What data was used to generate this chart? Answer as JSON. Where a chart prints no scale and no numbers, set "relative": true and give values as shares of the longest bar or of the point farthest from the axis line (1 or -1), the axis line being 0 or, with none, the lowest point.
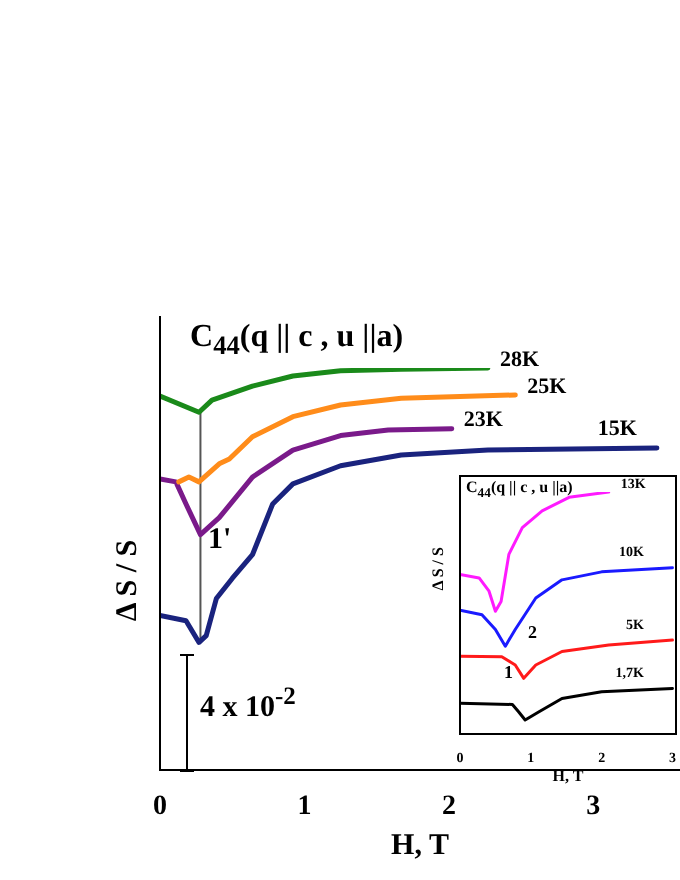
{
  "chart_data": [
    {
      "type": "line",
      "title": "C$_{44}$(q || c , u ||a)",
      "xlabel": "H, T",
      "ylabel": "Δ S / S",
      "relative": true,
      "xlim": [
        0,
        3.6
      ],
      "xticks": [
        0,
        1,
        2,
        3
      ],
      "legend": false,
      "grid": false,
      "marker": "none",
      "series": [
        {
          "name": "28K",
          "color": "#1a8a1a",
          "x": [
            0,
            0.27,
            0.36,
            0.64,
            0.92,
            1.25,
            1.67,
            2.27
          ],
          "values": [
            0.93,
            0.89,
            0.92,
            0.955,
            0.98,
            0.993,
            0.997,
            1.0
          ]
        },
        {
          "name": "25K",
          "color": "#ff8c1a",
          "x": [
            0.13,
            0.2,
            0.27,
            0.41,
            0.48,
            0.64,
            0.92,
            1.25,
            1.67,
            2.46
          ],
          "values": [
            0.717,
            0.729,
            0.717,
            0.762,
            0.774,
            0.829,
            0.879,
            0.908,
            0.925,
            0.933
          ]
        },
        {
          "name": "23K",
          "color": "#7a1a8a",
          "x": [
            0,
            0.11,
            0.18,
            0.28,
            0.41,
            0.64,
            0.92,
            1.25,
            1.58,
            2.02
          ],
          "values": [
            0.724,
            0.717,
            0.662,
            0.586,
            0.628,
            0.729,
            0.796,
            0.832,
            0.846,
            0.849
          ]
        },
        {
          "name": "15K",
          "color": "#1a237e",
          "x": [
            0,
            0.18,
            0.27,
            0.32,
            0.39,
            0.5,
            0.64,
            0.78,
            0.92,
            1.25,
            1.67,
            2.27,
            3.44
          ],
          "values": [
            0.385,
            0.372,
            0.318,
            0.335,
            0.427,
            0.477,
            0.536,
            0.662,
            0.712,
            0.757,
            0.784,
            0.796,
            0.801
          ]
        },
        {
          "color": "#555555",
          "x": [
            0.28,
            0.28
          ],
          "values": [
            0.89,
            0.318
          ]
        }
      ],
      "annotations": [
        "1'",
        "4 x 10$^{-2}$"
      ]
    },
    {
      "type": "line",
      "title": "C$_{44}$(q || c , u ||a)",
      "xlabel": "H, T",
      "ylabel": "Δ S / S",
      "relative": true,
      "xlim": [
        0,
        3.05
      ],
      "xticks": [
        0,
        1,
        2,
        3
      ],
      "legend": false,
      "grid": false,
      "marker": "none",
      "series": [
        {
          "name": "13K",
          "color": "#ff1aff",
          "x": [
            0,
            0.27,
            0.41,
            0.5,
            0.58,
            0.69,
            0.88,
            1.16,
            1.54,
            2.1
          ],
          "values": [
            0.659,
            0.645,
            0.59,
            0.507,
            0.548,
            0.742,
            0.853,
            0.922,
            0.978,
            1.0
          ]
        },
        {
          "name": "10K",
          "color": "#1a1aff",
          "x": [
            0,
            0.31,
            0.5,
            0.64,
            0.78,
            1.07,
            1.44,
            2.0,
            3.0
          ],
          "values": [
            0.512,
            0.493,
            0.432,
            0.363,
            0.432,
            0.562,
            0.637,
            0.67,
            0.687
          ]
        },
        {
          "name": "5K",
          "color": "#ff1a1a",
          "x": [
            0,
            0.59,
            0.78,
            0.9,
            1.07,
            1.44,
            2.1,
            3.0
          ],
          "values": [
            0.321,
            0.319,
            0.285,
            0.23,
            0.285,
            0.341,
            0.368,
            0.388
          ]
        },
        {
          "name": "1,7K",
          "color": "#000000",
          "x": [
            0,
            0.74,
            0.83,
            0.92,
            1.11,
            1.44,
            2.0,
            3.0
          ],
          "values": [
            0.127,
            0.122,
            0.091,
            0.058,
            0.091,
            0.147,
            0.175,
            0.188
          ]
        }
      ],
      "annotations": [
        "1",
        "2"
      ]
    }
  ]
}
